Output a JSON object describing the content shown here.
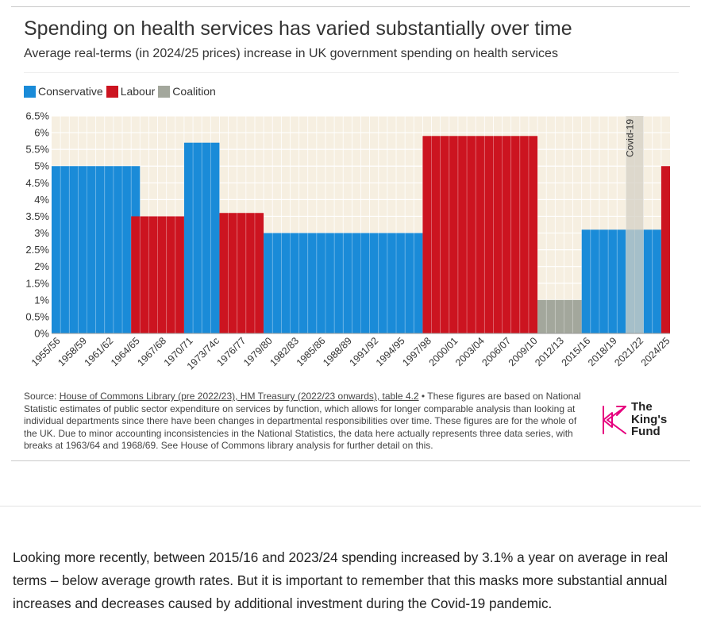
{
  "header": {
    "title": "Spending on health services has varied substantially over time",
    "subtitle": "Average real-terms (in 2024/25 prices) increase in UK government spending on health services"
  },
  "legend": [
    {
      "label": "Conservative",
      "color": "#1a8bd8"
    },
    {
      "label": "Labour",
      "color": "#cc1420"
    },
    {
      "label": "Coalition",
      "color": "#a3a79c"
    }
  ],
  "colors": {
    "Conservative": "#1a8bd8",
    "Labour": "#cc1420",
    "Coalition": "#a3a79c",
    "plot_background": "#f6efe1",
    "covid_band": "#d4d0c4",
    "grid": "#ffffff"
  },
  "chart_data": {
    "type": "bar",
    "title": "Spending on health services has varied substantially over time",
    "subtitle": "Average real-terms (in 2024/25 prices) increase in UK government spending on health services",
    "ylim": [
      0,
      6.5
    ],
    "y_ticks": [
      "0%",
      "0.5%",
      "1%",
      "1.5%",
      "2%",
      "2.5%",
      "3%",
      "3.5%",
      "4%",
      "4.5%",
      "5%",
      "5.5%",
      "6%",
      "6.5%"
    ],
    "x_tick_labels": [
      "1955/56",
      "1958/59",
      "1961/62",
      "1964/65",
      "1967/68",
      "1970/71",
      "1973/74c",
      "1976/77",
      "1979/80",
      "1982/83",
      "1985/86",
      "1988/89",
      "1991/92",
      "1994/95",
      "1997/98",
      "2000/01",
      "2003/04",
      "2006/07",
      "2009/10",
      "2012/13",
      "2015/16",
      "2018/19",
      "2021/22",
      "2024/25"
    ],
    "grid": true,
    "legend_position": "top-left",
    "periods": [
      {
        "party": "Conservative",
        "start": "1955/56",
        "end": "1964/65",
        "value": 5.0
      },
      {
        "party": "Labour",
        "start": "1964/65",
        "end": "1969/70",
        "value": 3.5
      },
      {
        "party": "Conservative",
        "start": "1970/71",
        "end": "1973/74c",
        "value": 5.7
      },
      {
        "party": "Labour",
        "start": "1974/75",
        "end": "1978/79",
        "value": 3.6
      },
      {
        "party": "Conservative",
        "start": "1979/80",
        "end": "1996/97",
        "value": 3.0
      },
      {
        "party": "Labour",
        "start": "1997/98",
        "end": "2009/10",
        "value": 5.9
      },
      {
        "party": "Coalition",
        "start": "2010/11",
        "end": "2014/15",
        "value": 1.0
      },
      {
        "party": "Conservative",
        "start": "2015/16",
        "end": "2023/24",
        "value": 3.1
      },
      {
        "party": "Labour",
        "start": "2024/25",
        "end": "2024/25",
        "value": 5.0
      }
    ],
    "annotations": [
      {
        "label": "Covid-19",
        "period": "2020/21-2021/22"
      }
    ]
  },
  "source": {
    "prefix": "Source: ",
    "link": "House of Commons Library (pre 2022/23), HM Treasury (2022/23 onwards), table 4.2",
    "text": " • These figures are based on National Statistic estimates of public sector expenditure on services by function, which allows for longer comparable analysis than looking at individual departments since there have been changes in departmental responsibilities over time. These figures are for the whole of the UK. Due to minor accounting inconsistencies in the National Statistics, the data here actually represents three data series, with breaks at 1963/64 and 1968/69. See House of Commons library analysis for further detail on this."
  },
  "logo": {
    "text": "The\nKing's\nFund"
  },
  "body": {
    "paragraph": "Looking more recently, between 2015/16 and 2023/24 spending increased by 3.1% a year on average in real terms – below average growth rates. But it is important to remember that this masks more substantial annual increases and decreases caused by additional investment during the Covid-19 pandemic."
  }
}
